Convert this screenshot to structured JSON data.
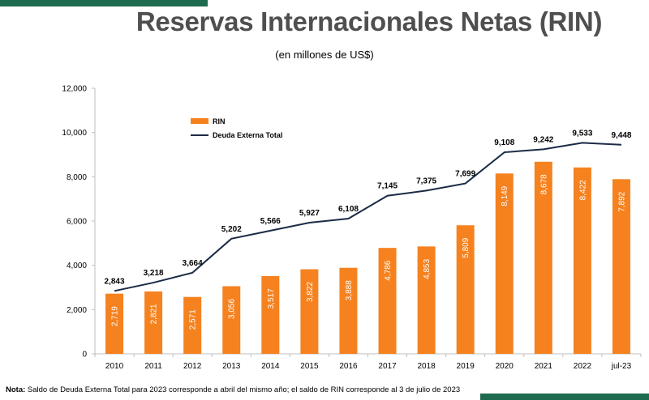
{
  "title": "Reservas Internacionales Netas (RIN)",
  "subtitle": "(en millones de US$)",
  "note_label": "Nota:",
  "note_text": " Saldo de Deuda Externa Total para 2023 corresponde a abril del mismo año; el saldo de RIN corresponde al 3 de julio de 2023",
  "colors": {
    "bar": "#f5821f",
    "line": "#1b2a47",
    "accent": "#1f6b4e",
    "axis": "#bfbfbf"
  },
  "chart_data": {
    "type": "bar",
    "title": "Reservas Internacionales Netas (RIN)",
    "subtitle": "(en millones de US$)",
    "categories": [
      "2010",
      "2011",
      "2012",
      "2013",
      "2014",
      "2015",
      "2016",
      "2017",
      "2018",
      "2019",
      "2020",
      "2021",
      "2022",
      "jul-23"
    ],
    "series": [
      {
        "name": "RIN",
        "type": "bar",
        "values": [
          2719,
          2821,
          2571,
          3056,
          3517,
          3822,
          3888,
          4786,
          4853,
          5809,
          8149,
          8678,
          8422,
          7892
        ],
        "labels": [
          "2,719",
          "2,821",
          "2,571",
          "3,056",
          "3,517",
          "3,822",
          "3,888",
          "4,786",
          "4,853",
          "5,809",
          "8,149",
          "8,678",
          "8,422",
          "7,892"
        ]
      },
      {
        "name": "Deuda Externa Total",
        "type": "line",
        "values": [
          2843,
          3218,
          3664,
          5202,
          5566,
          5927,
          6108,
          7145,
          7375,
          7699,
          9108,
          9242,
          9533,
          9448
        ],
        "labels": [
          "2,843",
          "3,218",
          "3,664",
          "5,202",
          "5,566",
          "5,927",
          "6,108",
          "7,145",
          "7,375",
          "7,699",
          "9,108",
          "9,242",
          "9,533",
          "9,448"
        ]
      }
    ],
    "ylim": [
      0,
      12000
    ],
    "yticks": [
      0,
      2000,
      4000,
      6000,
      8000,
      10000,
      12000
    ],
    "ytick_labels": [
      "0",
      "2,000",
      "4,000",
      "6,000",
      "8,000",
      "10,000",
      "12,000"
    ],
    "grid": false,
    "legend": "top-left"
  }
}
